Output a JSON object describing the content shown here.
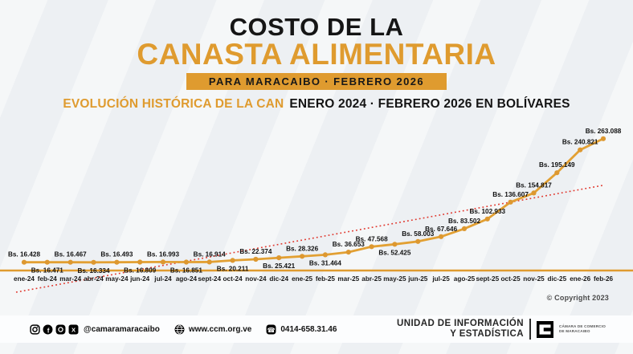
{
  "header": {
    "title_line1": "COSTO DE LA",
    "title_line2": "CANASTA ALIMENTARIA",
    "banner": "PARA MARACAIBO  ·  FEBRERO 2026"
  },
  "subtitle": {
    "highlight": "EVOLUCIÓN HISTÓRICA DE LA CAN",
    "rest": "ENERO 2024 ·  FEBRERO 2026 EN BOLÍVARES"
  },
  "chart_data": {
    "type": "line",
    "currency_prefix": "Bs.",
    "categories": [
      "ene-24",
      "feb-24",
      "mar-24",
      "abr-24",
      "may-24",
      "jun-24",
      "jul-24",
      "ago-24",
      "sept-24",
      "oct-24",
      "nov-24",
      "dic-24",
      "ene-25",
      "feb-25",
      "mar-25",
      "abr-25",
      "may-25",
      "jun-25",
      "jul-25",
      "ago-25",
      "sept-25",
      "oct-25",
      "nov-25",
      "dic-25",
      "ene-26",
      "feb-26"
    ],
    "values": [
      16428,
      16471,
      16467,
      16334,
      16493,
      16809,
      16993,
      16851,
      16914,
      20211,
      22374,
      25421,
      28326,
      31464,
      36653,
      47568,
      52425,
      58003,
      67646,
      83502,
      102933,
      136607,
      154817,
      195149,
      240821,
      263088
    ],
    "label_position": [
      "above",
      "below",
      "above",
      "below",
      "above",
      "below",
      "above",
      "below",
      "above",
      "below",
      "above",
      "below",
      "above",
      "below",
      "above",
      "above",
      "below",
      "above",
      "above",
      "above",
      "above",
      "above",
      "above",
      "above",
      "above",
      "above"
    ],
    "line_color": "#E2A033",
    "point_color": "#DD9830",
    "axis_color": "#DF9B2F",
    "trend_line": {
      "style": "dotted",
      "color": "#E0352B"
    },
    "legend": "none",
    "grid": false
  },
  "copyright": "© Copyright 2023",
  "footer": {
    "social_handle": "@camaramaracaibo",
    "website": "www.ccm.org.ve",
    "phone": "0414-658.31.46",
    "unit_line1": "UNIDAD DE INFORMACIÓN",
    "unit_line2": "Y ESTADÍSTICA",
    "logo_line1": "CÁMARA DE COMERCIO",
    "logo_line2": "DE MARACAIBO"
  }
}
